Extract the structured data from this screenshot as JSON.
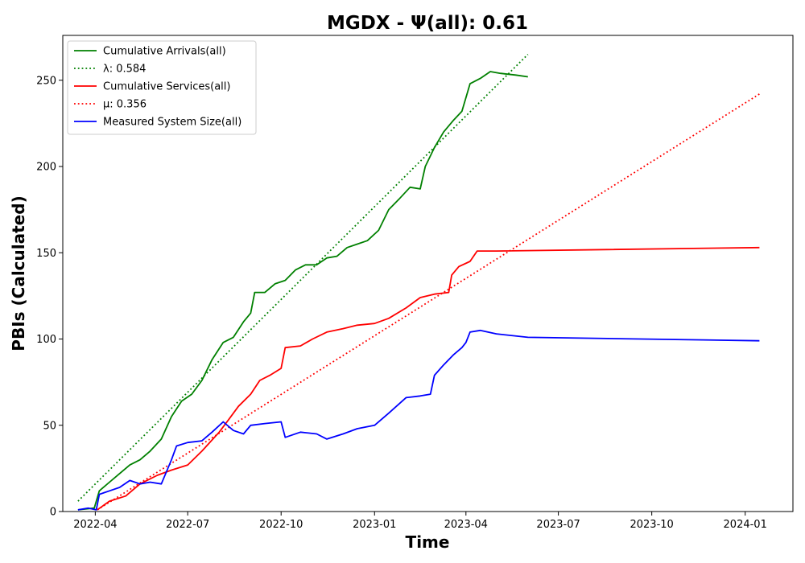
{
  "chart_data": {
    "type": "line",
    "title": "MGDX -  Ψ(all): 0.61",
    "xlabel": "Time",
    "ylabel": "PBIs (Calculated)",
    "xlim": [
      "2022-02-28",
      "2024-02-17"
    ],
    "ylim": [
      0,
      276
    ],
    "x_ticks": [
      {
        "date": "2022-04-01",
        "label": "2022-04"
      },
      {
        "date": "2022-07-01",
        "label": "2022-07"
      },
      {
        "date": "2022-10-01",
        "label": "2022-10"
      },
      {
        "date": "2023-01-01",
        "label": "2023-01"
      },
      {
        "date": "2023-04-01",
        "label": "2023-04"
      },
      {
        "date": "2023-07-01",
        "label": "2023-07"
      },
      {
        "date": "2023-10-01",
        "label": "2023-10"
      },
      {
        "date": "2024-01-01",
        "label": "2024-01"
      }
    ],
    "y_ticks": [
      0,
      50,
      100,
      150,
      200,
      250
    ],
    "grid": false,
    "legend_position": "top-left",
    "series": [
      {
        "name": "Cumulative Arrivals(all)",
        "color": "#008000",
        "style": "solid",
        "points": [
          [
            "2022-03-15",
            1
          ],
          [
            "2022-03-31",
            2
          ],
          [
            "2022-04-05",
            12
          ],
          [
            "2022-04-15",
            17
          ],
          [
            "2022-04-25",
            22
          ],
          [
            "2022-05-05",
            27
          ],
          [
            "2022-05-15",
            30
          ],
          [
            "2022-05-25",
            35
          ],
          [
            "2022-06-05",
            42
          ],
          [
            "2022-06-15",
            55
          ],
          [
            "2022-06-25",
            64
          ],
          [
            "2022-07-05",
            68
          ],
          [
            "2022-07-15",
            76
          ],
          [
            "2022-07-25",
            88
          ],
          [
            "2022-08-05",
            98
          ],
          [
            "2022-08-15",
            101
          ],
          [
            "2022-08-25",
            110
          ],
          [
            "2022-09-01",
            115
          ],
          [
            "2022-09-05",
            127
          ],
          [
            "2022-09-15",
            127
          ],
          [
            "2022-09-25",
            132
          ],
          [
            "2022-10-05",
            134
          ],
          [
            "2022-10-15",
            140
          ],
          [
            "2022-10-25",
            143
          ],
          [
            "2022-11-05",
            143
          ],
          [
            "2022-11-15",
            147
          ],
          [
            "2022-11-25",
            148
          ],
          [
            "2022-12-05",
            153
          ],
          [
            "2022-12-15",
            155
          ],
          [
            "2022-12-25",
            157
          ],
          [
            "2023-01-05",
            163
          ],
          [
            "2023-01-15",
            175
          ],
          [
            "2023-01-25",
            181
          ],
          [
            "2023-02-05",
            188
          ],
          [
            "2023-02-15",
            187
          ],
          [
            "2023-02-20",
            200
          ],
          [
            "2023-03-01",
            211
          ],
          [
            "2023-03-10",
            220
          ],
          [
            "2023-03-20",
            227
          ],
          [
            "2023-03-28",
            232
          ],
          [
            "2023-04-05",
            248
          ],
          [
            "2023-04-15",
            251
          ],
          [
            "2023-04-25",
            255
          ],
          [
            "2023-05-05",
            254
          ],
          [
            "2023-05-20",
            253
          ],
          [
            "2023-06-01",
            252
          ]
        ]
      },
      {
        "name": "λ: 0.584",
        "color": "#008000",
        "style": "dotted",
        "points": [
          [
            "2022-03-15",
            6
          ],
          [
            "2023-06-01",
            265
          ]
        ]
      },
      {
        "name": "Cumulative Services(all)",
        "color": "#ff0000",
        "style": "solid",
        "points": [
          [
            "2022-04-03",
            1
          ],
          [
            "2022-04-15",
            6
          ],
          [
            "2022-05-01",
            9
          ],
          [
            "2022-05-15",
            16
          ],
          [
            "2022-06-01",
            21
          ],
          [
            "2022-06-15",
            24
          ],
          [
            "2022-07-01",
            27
          ],
          [
            "2022-07-15",
            35
          ],
          [
            "2022-08-01",
            46
          ],
          [
            "2022-08-10",
            53
          ],
          [
            "2022-08-20",
            61
          ],
          [
            "2022-09-01",
            68
          ],
          [
            "2022-09-10",
            76
          ],
          [
            "2022-09-20",
            79
          ],
          [
            "2022-10-01",
            83
          ],
          [
            "2022-10-05",
            95
          ],
          [
            "2022-10-20",
            96
          ],
          [
            "2022-11-01",
            100
          ],
          [
            "2022-11-15",
            104
          ],
          [
            "2022-12-01",
            106
          ],
          [
            "2022-12-15",
            108
          ],
          [
            "2023-01-01",
            109
          ],
          [
            "2023-01-15",
            112
          ],
          [
            "2023-02-01",
            118
          ],
          [
            "2023-02-15",
            124
          ],
          [
            "2023-03-01",
            126
          ],
          [
            "2023-03-15",
            127
          ],
          [
            "2023-03-18",
            137
          ],
          [
            "2023-03-25",
            142
          ],
          [
            "2023-04-05",
            145
          ],
          [
            "2023-04-12",
            151
          ],
          [
            "2023-05-01",
            151
          ],
          [
            "2024-01-15",
            153
          ]
        ]
      },
      {
        "name": "μ: 0.356",
        "color": "#ff0000",
        "style": "dotted",
        "points": [
          [
            "2022-04-03",
            1
          ],
          [
            "2024-01-15",
            242
          ]
        ]
      },
      {
        "name": "Measured System Size(all)",
        "color": "#0000ff",
        "style": "solid",
        "points": [
          [
            "2022-03-15",
            1
          ],
          [
            "2022-03-25",
            2
          ],
          [
            "2022-04-02",
            1
          ],
          [
            "2022-04-05",
            10
          ],
          [
            "2022-04-15",
            12
          ],
          [
            "2022-04-25",
            14
          ],
          [
            "2022-05-05",
            18
          ],
          [
            "2022-05-15",
            16
          ],
          [
            "2022-05-25",
            17
          ],
          [
            "2022-06-05",
            16
          ],
          [
            "2022-06-15",
            30
          ],
          [
            "2022-06-20",
            38
          ],
          [
            "2022-07-01",
            40
          ],
          [
            "2022-07-15",
            41
          ],
          [
            "2022-07-25",
            46
          ],
          [
            "2022-08-05",
            52
          ],
          [
            "2022-08-15",
            47
          ],
          [
            "2022-08-25",
            45
          ],
          [
            "2022-09-01",
            50
          ],
          [
            "2022-09-15",
            51
          ],
          [
            "2022-10-01",
            52
          ],
          [
            "2022-10-05",
            43
          ],
          [
            "2022-10-20",
            46
          ],
          [
            "2022-11-05",
            45
          ],
          [
            "2022-11-15",
            42
          ],
          [
            "2022-12-01",
            45
          ],
          [
            "2022-12-15",
            48
          ],
          [
            "2023-01-01",
            50
          ],
          [
            "2023-01-15",
            57
          ],
          [
            "2023-02-01",
            66
          ],
          [
            "2023-02-15",
            67
          ],
          [
            "2023-02-25",
            68
          ],
          [
            "2023-03-01",
            79
          ],
          [
            "2023-03-10",
            85
          ],
          [
            "2023-03-20",
            91
          ],
          [
            "2023-03-28",
            95
          ],
          [
            "2023-04-01",
            98
          ],
          [
            "2023-04-05",
            104
          ],
          [
            "2023-04-15",
            105
          ],
          [
            "2023-05-01",
            103
          ],
          [
            "2023-06-01",
            101
          ],
          [
            "2024-01-15",
            99
          ]
        ]
      }
    ]
  }
}
